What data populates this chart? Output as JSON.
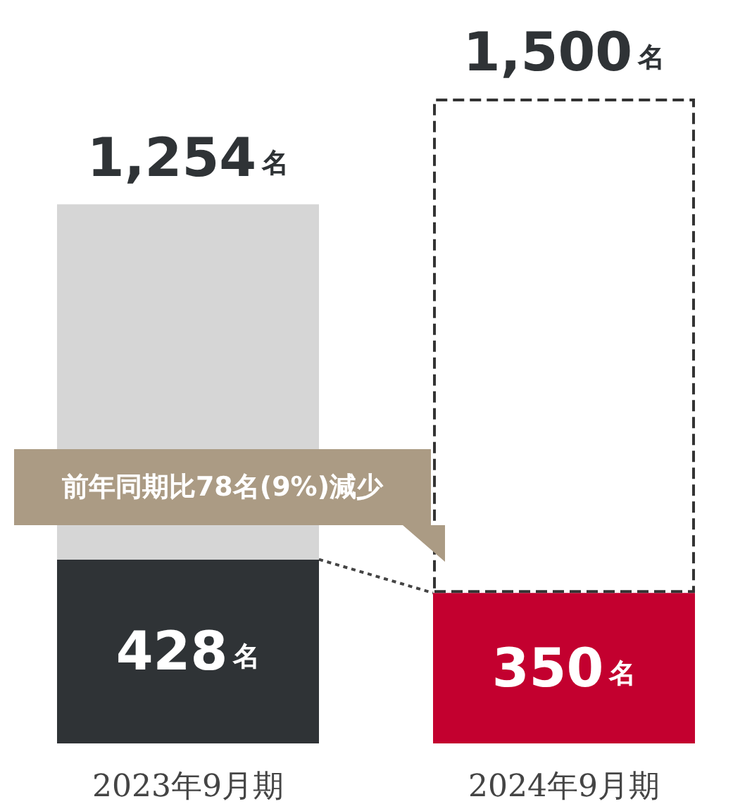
{
  "chart_data": {
    "type": "bar",
    "stacked": true,
    "categories": [
      "2023年9月期",
      "2024年9月期"
    ],
    "series": [
      {
        "colors": [
          "#2f3336",
          "#c3002f"
        ],
        "values": [
          428,
          350
        ],
        "value_labels": [
          "428名",
          "350名"
        ]
      },
      {
        "colors": [
          "#d6d6d6",
          "#ffffff"
        ],
        "values": [
          826,
          1150
        ]
      }
    ],
    "totals": [
      "1,254名",
      "1,500名"
    ],
    "annotations": [
      "前年同期比78名(9%)減少"
    ]
  }
}
